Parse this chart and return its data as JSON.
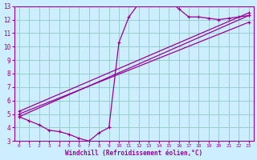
{
  "title": "",
  "xlabel": "Windchill (Refroidissement éolien,°C)",
  "bg_color": "#cceeff",
  "grid_color": "#99cccc",
  "line_color": "#990099",
  "xlim": [
    -0.5,
    23.5
  ],
  "ylim": [
    3,
    13
  ],
  "xticks": [
    0,
    1,
    2,
    3,
    4,
    5,
    6,
    7,
    8,
    9,
    10,
    11,
    12,
    13,
    14,
    15,
    16,
    17,
    18,
    19,
    20,
    21,
    22,
    23
  ],
  "yticks": [
    3,
    4,
    5,
    6,
    7,
    8,
    9,
    10,
    11,
    12,
    13
  ],
  "curves": [
    {
      "x": [
        0,
        1,
        2,
        3,
        4,
        5,
        6,
        7,
        8,
        9,
        10,
        11,
        12,
        13,
        14,
        15,
        16,
        17,
        18,
        19,
        20,
        21,
        22,
        23
      ],
      "y": [
        4.8,
        4.5,
        4.2,
        3.8,
        3.7,
        3.5,
        3.2,
        3.0,
        3.6,
        4.0,
        10.3,
        12.2,
        13.2,
        13.3,
        13.5,
        13.4,
        12.8,
        12.2,
        12.2,
        12.1,
        12.0,
        12.1,
        12.2,
        12.3
      ]
    },
    {
      "x": [
        0,
        23
      ],
      "y": [
        4.8,
        12.3
      ]
    },
    {
      "x": [
        0,
        23
      ],
      "y": [
        5.0,
        11.8
      ]
    },
    {
      "x": [
        0,
        23
      ],
      "y": [
        5.2,
        12.5
      ]
    }
  ]
}
